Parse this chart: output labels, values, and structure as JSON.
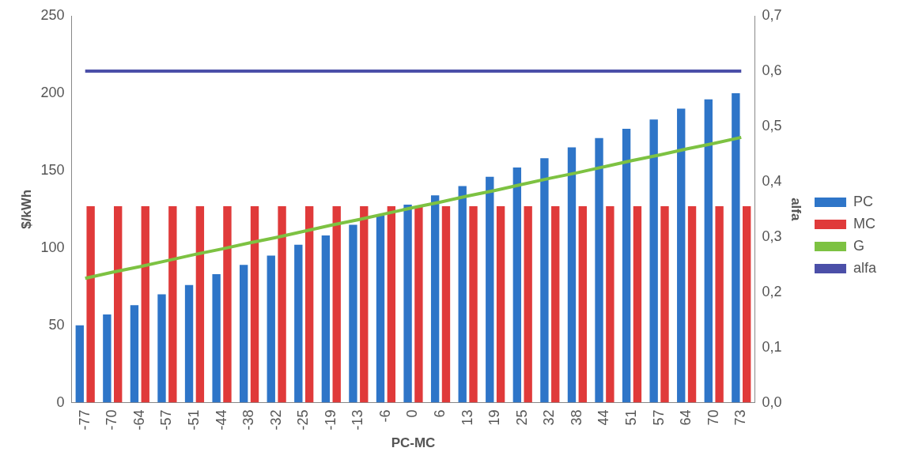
{
  "chart_data": {
    "type": "bar",
    "xlabel": "PC-MC",
    "ylabel": "$/kWh",
    "y2label": "alfa",
    "categories": [
      "-77",
      "-70",
      "-64",
      "-57",
      "-51",
      "-44",
      "-38",
      "-32",
      "-25",
      "-19",
      "-13",
      "-6",
      "0",
      "6",
      "13",
      "19",
      "25",
      "32",
      "38",
      "44",
      "51",
      "57",
      "64",
      "70",
      "73"
    ],
    "series": [
      {
        "name": "PC",
        "color": "#2e75c8",
        "values": [
          50,
          57,
          63,
          70,
          76,
          83,
          89,
          95,
          102,
          108,
          115,
          121,
          128,
          134,
          140,
          146,
          152,
          158,
          165,
          171,
          177,
          183,
          190,
          196,
          200
        ]
      },
      {
        "name": "MC",
        "color": "#e03a3a",
        "values": [
          127,
          127,
          127,
          127,
          127,
          127,
          127,
          127,
          127,
          127,
          127,
          127,
          127,
          127,
          127,
          127,
          127,
          127,
          127,
          127,
          127,
          127,
          127,
          127,
          127
        ]
      },
      {
        "name": "G",
        "type": "line",
        "axis": "y2",
        "color": "#7dc242",
        "values": [
          0.225,
          0.236,
          0.246,
          0.257,
          0.268,
          0.278,
          0.289,
          0.299,
          0.31,
          0.321,
          0.331,
          0.342,
          0.353,
          0.363,
          0.374,
          0.384,
          0.395,
          0.406,
          0.416,
          0.427,
          0.438,
          0.448,
          0.459,
          0.469,
          0.48
        ]
      },
      {
        "name": "alfa",
        "type": "line",
        "axis": "y2",
        "color": "#4b4fa8",
        "values": [
          0.6,
          0.6,
          0.6,
          0.6,
          0.6,
          0.6,
          0.6,
          0.6,
          0.6,
          0.6,
          0.6,
          0.6,
          0.6,
          0.6,
          0.6,
          0.6,
          0.6,
          0.6,
          0.6,
          0.6,
          0.6,
          0.6,
          0.6,
          0.6,
          0.6
        ]
      }
    ],
    "ylim": [
      0,
      250
    ],
    "yticks": [
      0,
      50,
      100,
      150,
      200,
      250
    ],
    "y2lim": [
      0,
      0.7
    ],
    "y2ticks": [
      {
        "value": 0,
        "label": "0,0"
      },
      {
        "value": 0.1,
        "label": "0,1"
      },
      {
        "value": 0.2,
        "label": "0,2"
      },
      {
        "value": 0.3,
        "label": "0,3"
      },
      {
        "value": 0.4,
        "label": "0,4"
      },
      {
        "value": 0.5,
        "label": "0,5"
      },
      {
        "value": 0.6,
        "label": "0,6"
      },
      {
        "value": 0.7,
        "label": "0,7"
      }
    ],
    "grid": false,
    "legend": "right",
    "marker": "none"
  }
}
